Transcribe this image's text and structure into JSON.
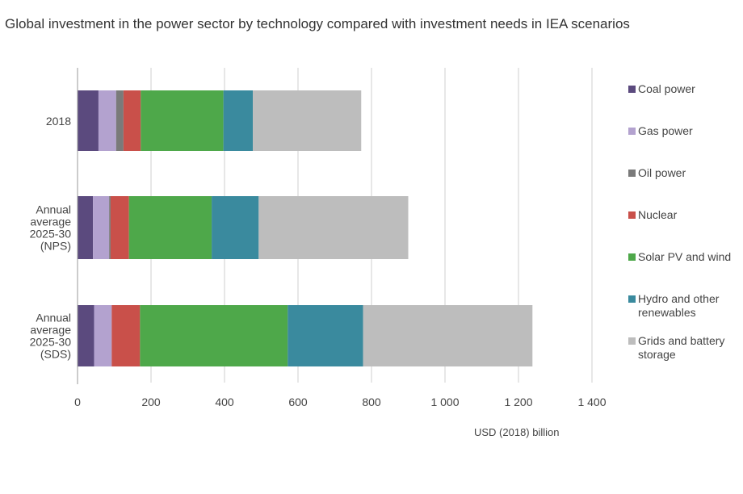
{
  "chart_data": {
    "type": "bar",
    "orientation": "horizontal",
    "stacked": true,
    "title": "Global investment in the power sector by technology compared with investment needs in IEA scenarios",
    "xlabel": "USD (2018) billion",
    "ylabel": "",
    "xlim": [
      0,
      1400
    ],
    "xticks": [
      0,
      200,
      400,
      600,
      800,
      1000,
      1200,
      1400
    ],
    "xtick_labels": [
      "0",
      "200",
      "400",
      "600",
      "800",
      "1 000",
      "1 200",
      "1 400"
    ],
    "grid": "vertical",
    "legend_position": "right",
    "categories": [
      [
        "2018"
      ],
      [
        "Annual",
        "average",
        "2025-30",
        "(NPS)"
      ],
      [
        "Annual",
        "average",
        "2025-30",
        "(SDS)"
      ]
    ],
    "series": [
      {
        "name": "Coal power",
        "color": "#5b4a7e",
        "values": [
          57,
          42,
          45
        ]
      },
      {
        "name": "Gas power",
        "color": "#b3a2cf",
        "values": [
          48,
          44,
          48
        ]
      },
      {
        "name": "Oil power",
        "color": "#7a7a7a",
        "values": [
          20,
          4,
          0
        ]
      },
      {
        "name": "Nuclear",
        "color": "#c9504a",
        "values": [
          47,
          50,
          77
        ]
      },
      {
        "name": "Solar PV and wind",
        "color": "#4ea84a",
        "values": [
          225,
          225,
          402
        ]
      },
      {
        "name": "Hydro and other renewables",
        "color": "#3a8a9e",
        "values": [
          80,
          128,
          205
        ]
      },
      {
        "name": "Grids and battery storage",
        "color": "#bdbdbd",
        "values": [
          295,
          407,
          461
        ]
      }
    ]
  },
  "legend": [
    {
      "lines": [
        "Coal power"
      ],
      "color": "#5b4a7e"
    },
    {
      "lines": [
        "Gas power"
      ],
      "color": "#b3a2cf"
    },
    {
      "lines": [
        "Oil power"
      ],
      "color": "#7a7a7a"
    },
    {
      "lines": [
        "Nuclear"
      ],
      "color": "#c9504a"
    },
    {
      "lines": [
        "Solar PV and wind"
      ],
      "color": "#4ea84a"
    },
    {
      "lines": [
        "Hydro and other",
        "renewables"
      ],
      "color": "#3a8a9e"
    },
    {
      "lines": [
        "Grids and battery",
        "storage"
      ],
      "color": "#bdbdbd"
    }
  ]
}
